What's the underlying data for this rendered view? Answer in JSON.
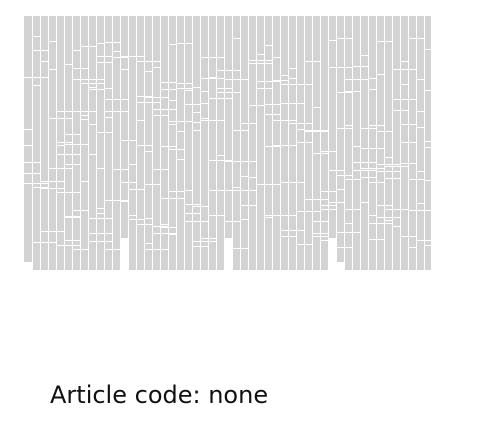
{
  "caption": {
    "text": "Article code: none"
  },
  "pattern": {
    "fill_color": "#d3d3d3",
    "line_color": "#ffffff"
  }
}
